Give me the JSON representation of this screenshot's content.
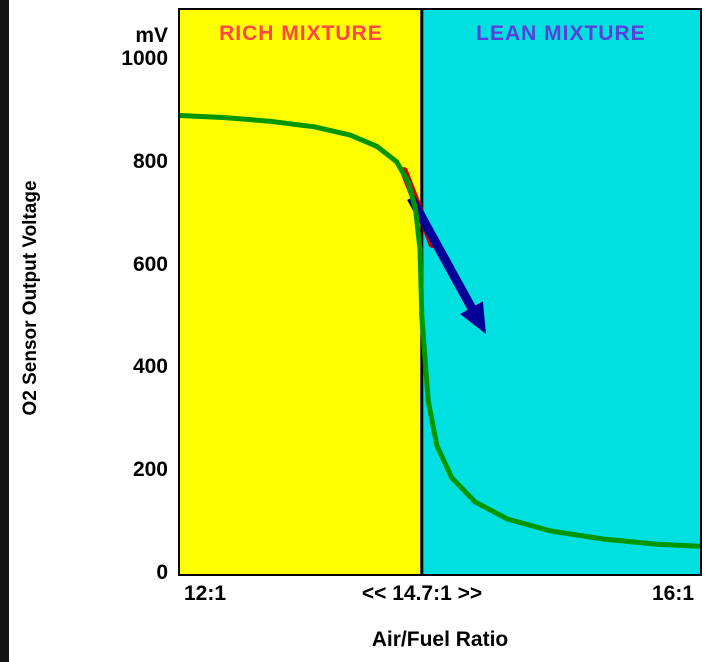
{
  "window": {
    "background": "#ffffff",
    "edge_color": "#141414"
  },
  "chart_data": {
    "type": "line",
    "title": "",
    "xlabel": "Air/Fuel Ratio",
    "ylabel": "O2 Sensor Output Voltage",
    "y_unit": "mV",
    "xlim": [
      12,
      16
    ],
    "ylim": [
      0,
      1000
    ],
    "grid": false,
    "stoich_x": 14.7,
    "x_ticks": [
      {
        "value": 12,
        "label": "12:1"
      },
      {
        "value": 14.7,
        "label": "<< 14.7:1 >>"
      },
      {
        "value": 16,
        "label": "16:1"
      }
    ],
    "y_ticks": [
      1000,
      800,
      600,
      400,
      200,
      0
    ],
    "regions": [
      {
        "label": "RICH MIXTURE",
        "x_range": [
          12,
          14.7
        ],
        "fill": "#ffff00",
        "label_color": "#ff4545"
      },
      {
        "label": "LEAN MIXTURE",
        "x_range": [
          14.7,
          16
        ],
        "fill": "#00e0e0",
        "label_color": "#5b3fd9"
      }
    ],
    "divider": {
      "x": 14.7,
      "color": "#000000",
      "width": 3
    },
    "series": [
      {
        "name": "O2 sensor output voltage",
        "color": "#009600",
        "stroke_width": 5,
        "points": [
          [
            12.0,
            890
          ],
          [
            12.5,
            886
          ],
          [
            13.0,
            879
          ],
          [
            13.5,
            868
          ],
          [
            13.9,
            852
          ],
          [
            14.2,
            830
          ],
          [
            14.42,
            800
          ],
          [
            14.55,
            760
          ],
          [
            14.63,
            708
          ],
          [
            14.68,
            630
          ],
          [
            14.7,
            500
          ],
          [
            14.73,
            335
          ],
          [
            14.77,
            248
          ],
          [
            14.84,
            185
          ],
          [
            14.95,
            138
          ],
          [
            15.1,
            105
          ],
          [
            15.3,
            82
          ],
          [
            15.55,
            66
          ],
          [
            15.8,
            56
          ],
          [
            16.0,
            52
          ]
        ]
      }
    ],
    "annotations": [
      {
        "id": "rich-to-lean-red-arrow",
        "type": "arrow",
        "color": "#d40000",
        "from": [
          14.5,
          782
        ],
        "to": [
          14.75,
          640
        ],
        "width": 8,
        "head": false
      },
      {
        "id": "rich-to-lean-blue-arrow",
        "type": "arrow",
        "color": "#000099",
        "from": [
          14.58,
          730
        ],
        "to": [
          15.0,
          465
        ],
        "width": 9,
        "head": true
      }
    ]
  }
}
